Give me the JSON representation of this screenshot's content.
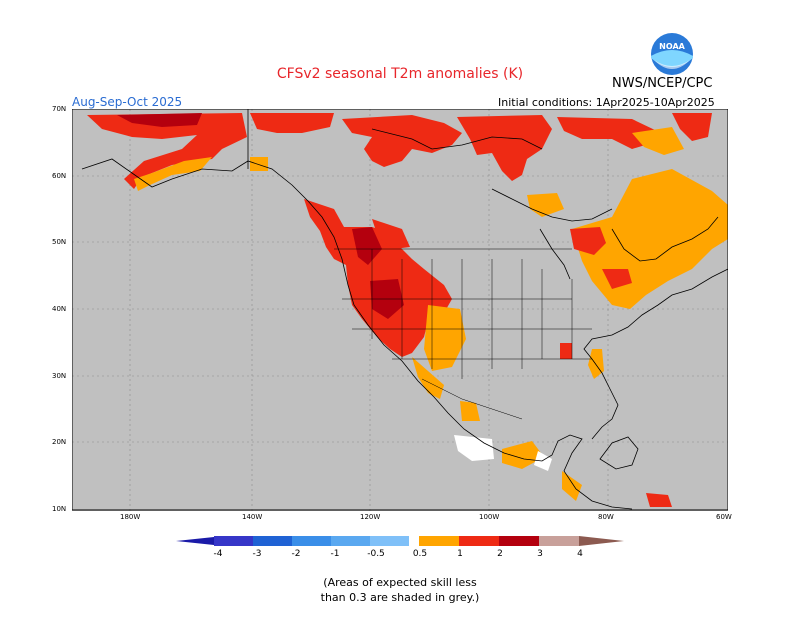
{
  "header": {
    "title": "CFSv2 seasonal T2m anomalies (K)",
    "org": "NWS/NCEP/CPC",
    "season": "Aug-Sep-Oct 2025",
    "initial_conditions": "Initial conditions: 1Apr2025-10Apr2025"
  },
  "logo": {
    "text": "NOAA"
  },
  "map": {
    "lat_labels": [
      "70N",
      "60N",
      "50N",
      "40N",
      "30N",
      "20N",
      "10N"
    ],
    "lon_labels": [
      "180W",
      "140W",
      "120W",
      "100W",
      "80W",
      "60W"
    ],
    "skill_mask_color": "#c0c0c0",
    "land_outline_color": "#000000"
  },
  "legend": {
    "labels": [
      "-4",
      "-3",
      "-2",
      "-1",
      "-0.5",
      "0.5",
      "1",
      "2",
      "3",
      "4"
    ],
    "colors_negative": [
      "#1a1aa8",
      "#3636c8",
      "#1f62d4",
      "#3a8ee8",
      "#5aa8f0",
      "#7fc0f8"
    ],
    "colors_positive": [
      "#ffa500",
      "#ff6a00",
      "#ee2a14",
      "#b4000e",
      "#c8a09a",
      "#8c5a50"
    ]
  },
  "note": {
    "line1": "(Areas of expected skill less",
    "line2": "than 0.3 are shaded in grey.)"
  }
}
